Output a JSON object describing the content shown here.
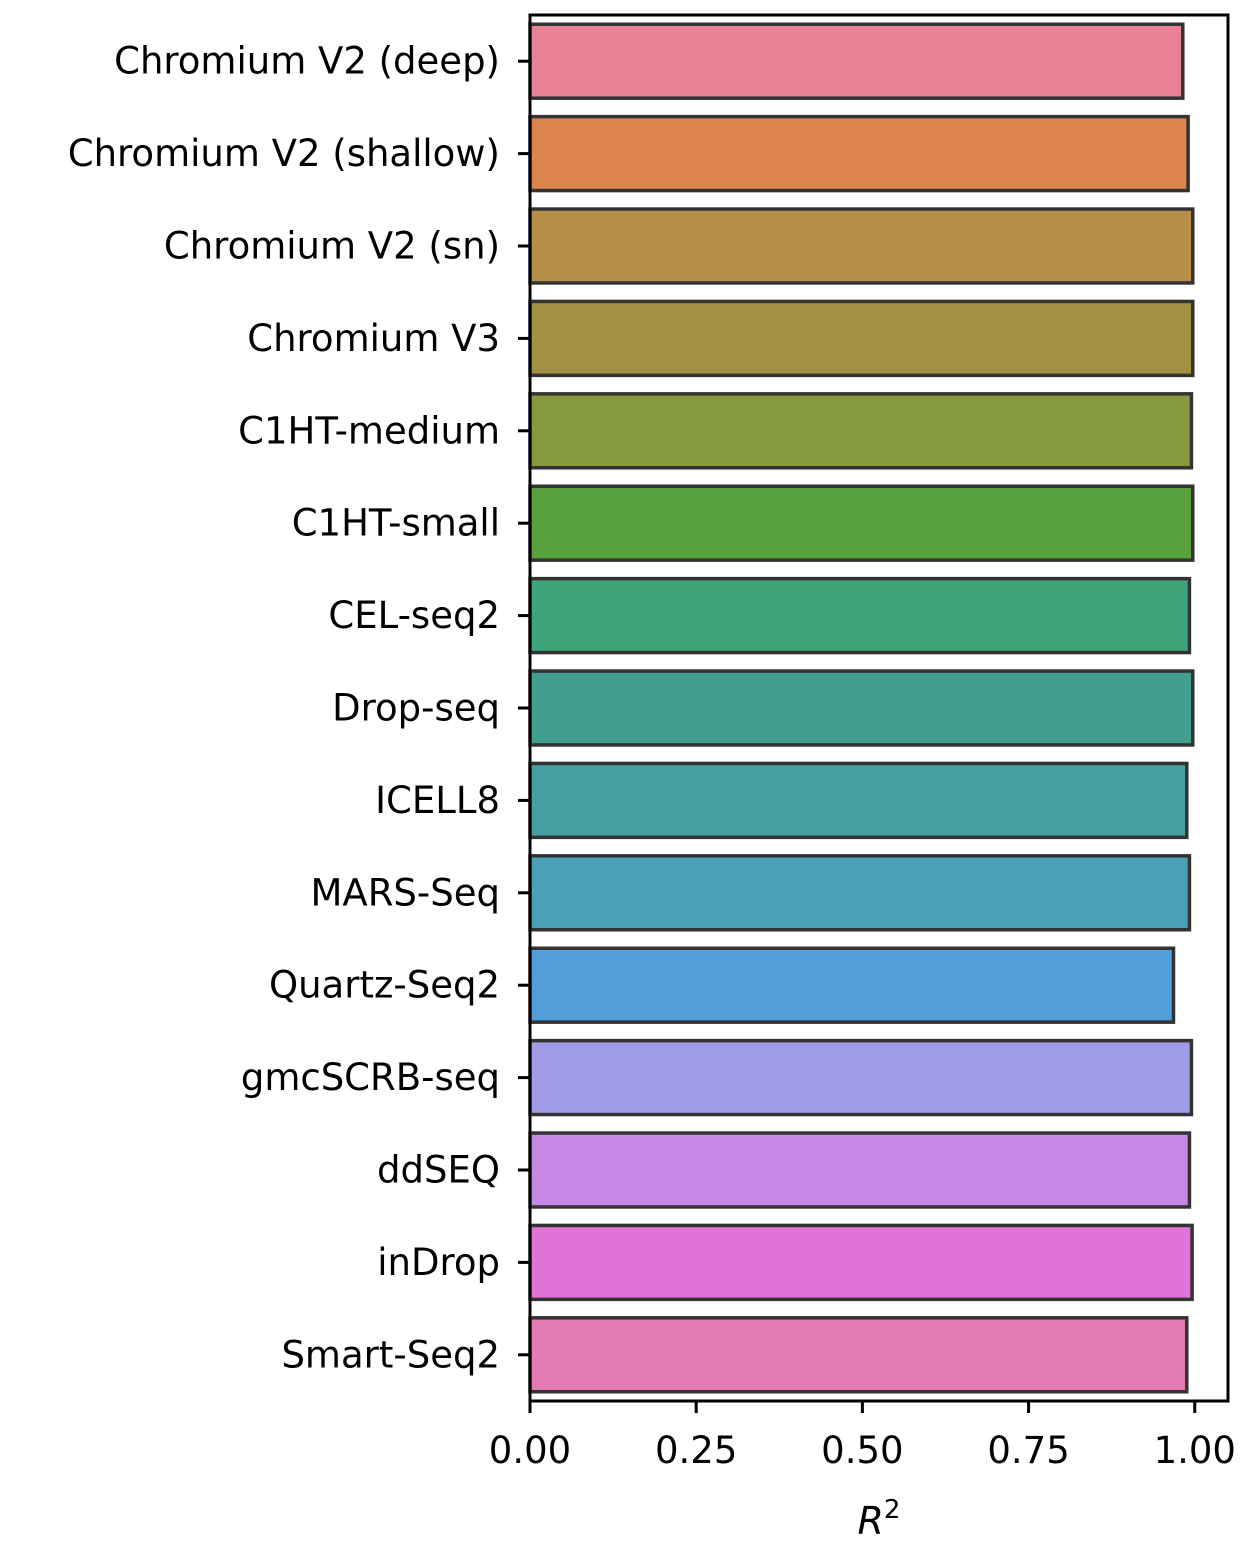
{
  "chart_data": {
    "type": "bar",
    "orientation": "horizontal",
    "title": "",
    "xlabel": "R",
    "xlabel_superscript": "2",
    "ylabel": "",
    "xlim": [
      0.0,
      1.05
    ],
    "xticks": [
      0.0,
      0.25,
      0.5,
      0.75,
      1.0
    ],
    "xtick_labels": [
      "0.00",
      "0.25",
      "0.50",
      "0.75",
      "1.00"
    ],
    "grid": false,
    "categories": [
      "Chromium V2 (deep)",
      "Chromium V2 (shallow)",
      "Chromium V2 (sn)",
      "Chromium V3",
      "C1HT-medium",
      "C1HT-small",
      "CEL-seq2",
      "Drop-seq",
      "ICELL8",
      "MARS-Seq",
      "Quartz-Seq2",
      "gmcSCRB-seq",
      "ddSEQ",
      "inDrop",
      "Smart-Seq2"
    ],
    "values": [
      0.982,
      0.99,
      0.997,
      0.997,
      0.995,
      0.997,
      0.992,
      0.997,
      0.988,
      0.992,
      0.968,
      0.995,
      0.992,
      0.996,
      0.988
    ],
    "colors": [
      "#e88196",
      "#dd834e",
      "#b58e47",
      "#a39143",
      "#87993f",
      "#58a13d",
      "#3ea47a",
      "#429e8e",
      "#469fa1",
      "#49a0b7",
      "#519ed8",
      "#a19ce7",
      "#c787e5",
      "#e073d6",
      "#e37bb2"
    ],
    "edge_color": "#333333"
  }
}
